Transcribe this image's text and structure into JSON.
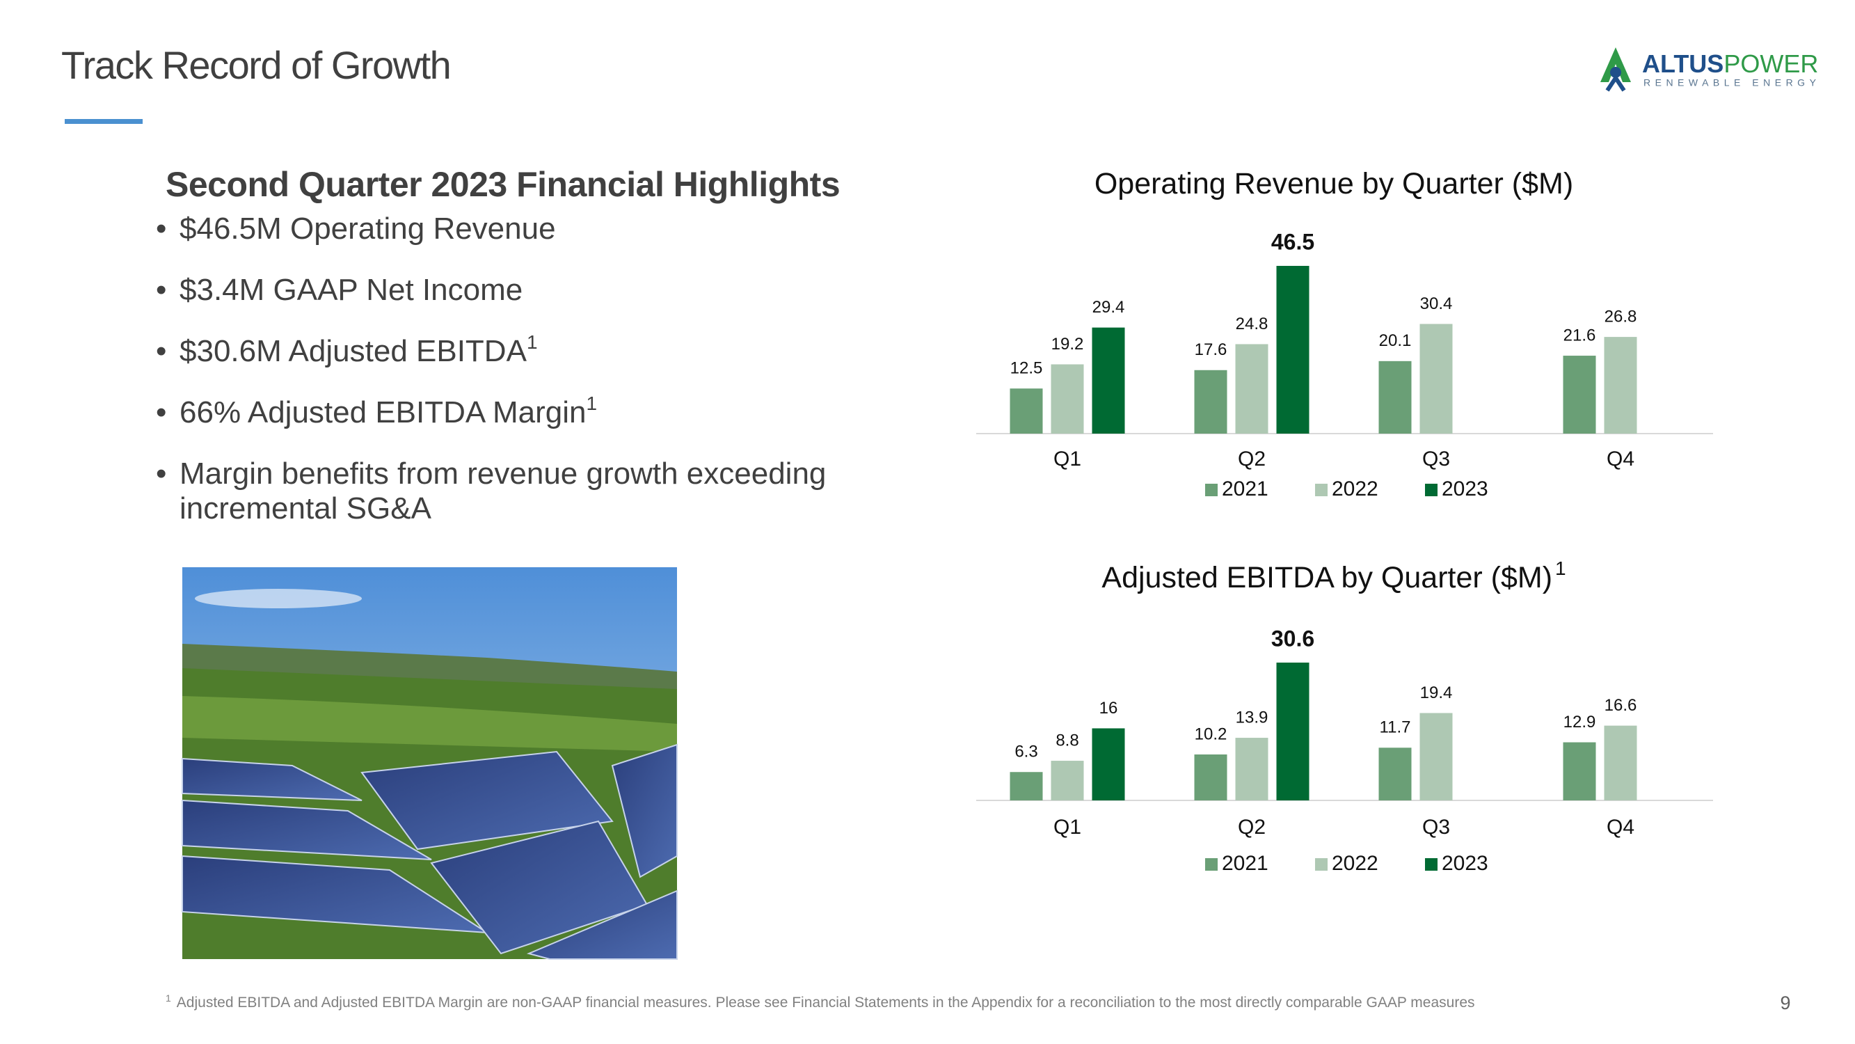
{
  "header": {
    "title": "Track Record of Growth",
    "logo_main": "ALTUS",
    "logo_accent": "POWER",
    "logo_sub": "RENEWABLE ENERGY"
  },
  "highlights": {
    "title": "Second Quarter 2023 Financial Highlights",
    "bullets": [
      {
        "text": "$46.5M Operating Revenue"
      },
      {
        "text": "$3.4M GAAP Net Income"
      },
      {
        "text": "$30.6M Adjusted EBITDA",
        "sup": "1"
      },
      {
        "text": "66% Adjusted EBITDA Margin",
        "sup": "1"
      },
      {
        "text": "Margin benefits from revenue growth exceeding incremental SG&A"
      }
    ]
  },
  "chart_data": [
    {
      "type": "bar",
      "title": "Operating Revenue by Quarter ($M)",
      "categories": [
        "Q1",
        "Q2",
        "Q3",
        "Q4"
      ],
      "series": [
        {
          "name": "2021",
          "color": "#6a9f76",
          "values": [
            12.5,
            17.6,
            20.1,
            21.6
          ]
        },
        {
          "name": "2022",
          "color": "#aec8b3",
          "values": [
            19.2,
            24.8,
            30.4,
            26.8
          ]
        },
        {
          "name": "2023",
          "color": "#006a33",
          "values": [
            29.4,
            46.5,
            null,
            null
          ]
        }
      ]
    },
    {
      "type": "bar",
      "title": "Adjusted EBITDA by Quarter ($M)",
      "title_sup": "1",
      "categories": [
        "Q1",
        "Q2",
        "Q3",
        "Q4"
      ],
      "series": [
        {
          "name": "2021",
          "color": "#6a9f76",
          "values": [
            6.3,
            10.2,
            11.7,
            12.9
          ]
        },
        {
          "name": "2022",
          "color": "#aec8b3",
          "values": [
            8.8,
            13.9,
            19.4,
            16.6
          ]
        },
        {
          "name": "2023",
          "color": "#006a33",
          "values": [
            16.0,
            30.6,
            null,
            null
          ]
        }
      ]
    }
  ],
  "footnote": {
    "marker": "1",
    "text": "Adjusted EBITDA and Adjusted EBITDA Margin are non-GAAP financial measures. Please see Financial Statements in the Appendix for a reconciliation to the most directly comparable GAAP measures"
  },
  "page_number": 9
}
